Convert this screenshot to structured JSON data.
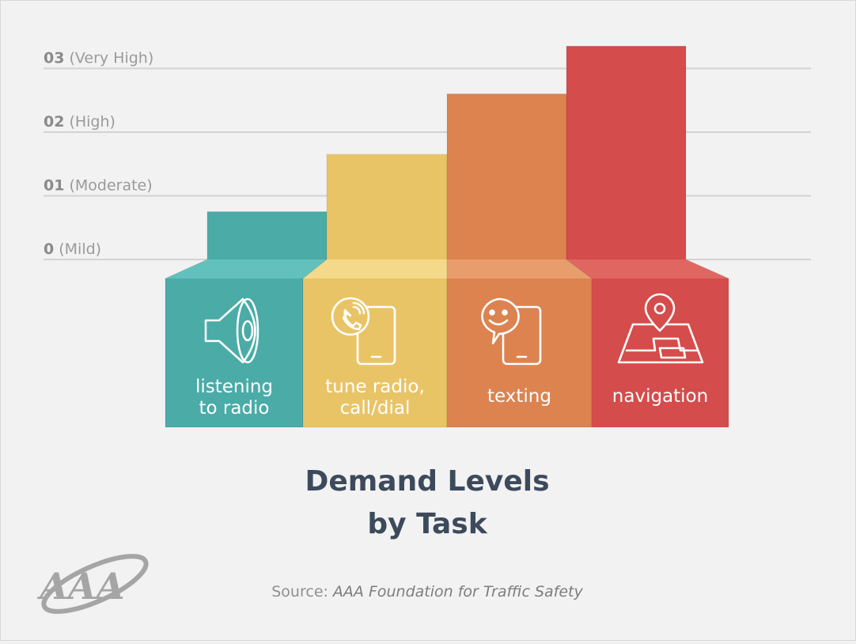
{
  "chart_data": {
    "type": "bar",
    "title": "Demand Levels by Task",
    "title_lines": [
      "Demand Levels",
      "by Task"
    ],
    "ylim": [
      -1,
      3
    ],
    "y_ticks": [
      {
        "value": 3,
        "number": "03",
        "label": "(Very High)"
      },
      {
        "value": 2,
        "number": "02",
        "label": "(High)"
      },
      {
        "value": 1,
        "number": "01",
        "label": "(Moderate)"
      },
      {
        "value": 0,
        "number": "0",
        "label": "(Mild)"
      }
    ],
    "categories": [
      {
        "lines": [
          "listening",
          "to radio"
        ],
        "value": 0.75,
        "color": "#4aaba7",
        "cap": "#62c1bd",
        "icon": "speaker-icon"
      },
      {
        "lines": [
          "tune radio,",
          "call/dial"
        ],
        "value": 1.65,
        "color": "#e9c466",
        "cap": "#f4d98a",
        "icon": "phone-call-icon"
      },
      {
        "lines": [
          "texting"
        ],
        "value": 2.6,
        "color": "#dc8350",
        "cap": "#e89e6c",
        "icon": "chat-phone-icon"
      },
      {
        "lines": [
          "navigation"
        ],
        "value": 3.35,
        "color": "#d44c4b",
        "cap": "#e06662",
        "icon": "map-pin-icon"
      }
    ],
    "grid": true,
    "source_prefix": "Source:",
    "source_text": "AAA Foundation for Traffic Safety",
    "logo_text": "AAA"
  }
}
